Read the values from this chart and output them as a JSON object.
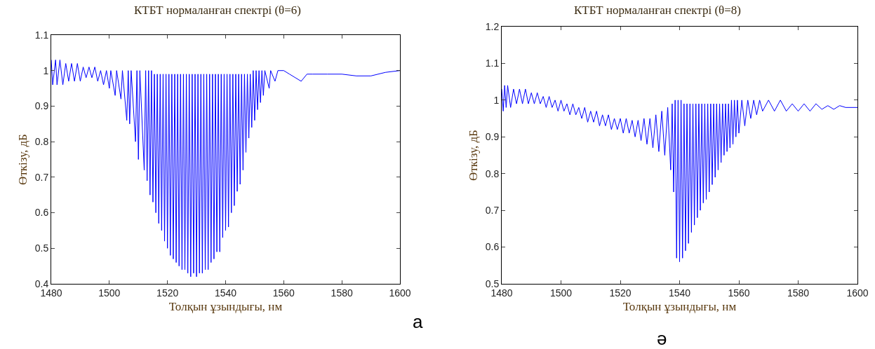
{
  "chart_data": [
    {
      "type": "line",
      "title": "КТБТ нормаланған спектрі (θ=6)",
      "xlabel": "Толқын ұзындығы, нм",
      "ylabel": "Өткізу, дБ",
      "xlim": [
        1480,
        1600
      ],
      "xticks": [
        1480,
        1500,
        1520,
        1540,
        1560,
        1580,
        1600
      ],
      "ylim": [
        0.4,
        1.1
      ],
      "yticks": [
        0.4,
        0.5,
        0.6,
        0.7,
        0.8,
        0.9,
        1,
        1.1
      ],
      "grid": false,
      "marker": "none",
      "line_style": "solid",
      "annotations": [
        "а"
      ],
      "series": [
        {
          "color": "#0000ff",
          "x": [
            1480,
            1480.5,
            1481.5,
            1482,
            1483,
            1484,
            1485,
            1486,
            1487,
            1488,
            1489,
            1490,
            1491,
            1492,
            1493,
            1494,
            1495,
            1496,
            1497,
            1498,
            1499,
            1500,
            1500.5,
            1502,
            1502.5,
            1504,
            1504.5,
            1506,
            1506.5,
            1507,
            1507.5,
            1509,
            1509.5,
            1510,
            1510.5,
            1512,
            1512.5,
            1513,
            1513.5,
            1514,
            1514.5,
            1515,
            1515.5,
            1516,
            1516.5,
            1517,
            1517.5,
            1518,
            1518.5,
            1519,
            1519.5,
            1520,
            1520.5,
            1521,
            1521.5,
            1522,
            1522.5,
            1523,
            1523.5,
            1524,
            1524.5,
            1525,
            1525.5,
            1526,
            1526.5,
            1527,
            1527.5,
            1528,
            1528.5,
            1529,
            1529.5,
            1530,
            1530.5,
            1531,
            1531.5,
            1532,
            1532.5,
            1533,
            1533.5,
            1534,
            1534.5,
            1535,
            1535.5,
            1536,
            1536.5,
            1537,
            1537.5,
            1538,
            1538.5,
            1539,
            1539.5,
            1540,
            1540.5,
            1541,
            1541.5,
            1542,
            1542.5,
            1543,
            1543.5,
            1544,
            1544.5,
            1545,
            1545.5,
            1546,
            1546.5,
            1547,
            1547.5,
            1548,
            1548.5,
            1549,
            1549.5,
            1550,
            1550.5,
            1551,
            1551.5,
            1552,
            1552.5,
            1553,
            1553.5,
            1555,
            1555.5,
            1557,
            1558,
            1560,
            1562,
            1564,
            1566,
            1568,
            1570,
            1575,
            1580,
            1585,
            1590,
            1595,
            1600
          ],
          "values": [
            1.03,
            0.96,
            1.03,
            0.96,
            1.03,
            0.96,
            1.02,
            0.97,
            1.02,
            0.97,
            1.02,
            0.97,
            1.01,
            0.98,
            1.01,
            0.98,
            1.01,
            0.97,
            1.0,
            0.96,
            1.0,
            0.95,
            1.0,
            0.93,
            1.0,
            0.92,
            1.0,
            0.86,
            1.0,
            0.85,
            1.0,
            0.8,
            1.0,
            0.75,
            1.0,
            0.72,
            1.0,
            0.69,
            1.0,
            0.65,
            1.0,
            0.63,
            0.99,
            0.6,
            0.99,
            0.57,
            0.99,
            0.55,
            0.99,
            0.52,
            0.99,
            0.5,
            0.99,
            0.48,
            0.99,
            0.47,
            0.99,
            0.46,
            0.99,
            0.45,
            0.99,
            0.44,
            0.99,
            0.44,
            0.99,
            0.43,
            0.99,
            0.42,
            0.99,
            0.43,
            0.99,
            0.42,
            0.99,
            0.43,
            0.99,
            0.43,
            0.99,
            0.44,
            0.99,
            0.44,
            0.99,
            0.46,
            0.99,
            0.47,
            0.99,
            0.49,
            0.99,
            0.49,
            0.99,
            0.53,
            0.99,
            0.55,
            0.99,
            0.56,
            0.99,
            0.6,
            0.99,
            0.62,
            0.99,
            0.66,
            0.99,
            0.68,
            0.99,
            0.72,
            0.99,
            0.77,
            0.99,
            0.81,
            0.99,
            0.84,
            1.0,
            0.86,
            1.0,
            0.89,
            1.0,
            0.91,
            1.0,
            0.93,
            1.0,
            0.95,
            1.0,
            0.97,
            1.0,
            1.0,
            0.99,
            0.98,
            0.97,
            0.99,
            0.99,
            0.99,
            0.99,
            0.985,
            0.985,
            0.995,
            1.0
          ]
        }
      ]
    },
    {
      "type": "line",
      "title": "КТБТ нормаланған спектрі (θ=8)",
      "xlabel": "Толқын ұзындығы, нм",
      "ylabel": "Өткізу, дБ",
      "xlim": [
        1480,
        1600
      ],
      "xticks": [
        1480,
        1500,
        1520,
        1540,
        1560,
        1580,
        1600
      ],
      "ylim": [
        0.5,
        1.2
      ],
      "yticks": [
        0.5,
        0.6,
        0.7,
        0.8,
        0.9,
        1,
        1.1,
        1.2
      ],
      "grid": false,
      "marker": "none",
      "line_style": "solid",
      "annotations": [
        "ә"
      ],
      "series": [
        {
          "color": "#0000ff",
          "x": [
            1480,
            1480.5,
            1481,
            1481.5,
            1482,
            1483,
            1484,
            1485,
            1486,
            1487,
            1488,
            1489,
            1490,
            1491,
            1492,
            1493,
            1494,
            1495,
            1496,
            1497,
            1498,
            1499,
            1500,
            1501,
            1502,
            1503,
            1504,
            1505,
            1506,
            1507,
            1508,
            1509,
            1510,
            1511,
            1512,
            1513,
            1514,
            1515,
            1516,
            1517,
            1518,
            1519,
            1520,
            1521,
            1522,
            1523,
            1524,
            1525,
            1526,
            1527,
            1528,
            1529,
            1530,
            1531,
            1532,
            1533,
            1534,
            1535,
            1536,
            1537,
            1537.5,
            1538,
            1538.5,
            1539,
            1539.5,
            1540,
            1540.5,
            1541,
            1541.5,
            1542,
            1542.5,
            1543,
            1543.5,
            1544,
            1544.5,
            1545,
            1545.5,
            1546,
            1546.5,
            1547,
            1547.5,
            1548,
            1548.5,
            1549,
            1549.5,
            1550,
            1550.5,
            1551,
            1551.5,
            1552,
            1552.5,
            1553,
            1553.5,
            1554,
            1554.5,
            1555,
            1555.5,
            1556,
            1556.5,
            1557,
            1557.5,
            1558,
            1558.5,
            1559,
            1559.5,
            1560,
            1561,
            1562,
            1563,
            1564,
            1565,
            1566,
            1567,
            1568,
            1570,
            1572,
            1574,
            1576,
            1578,
            1580,
            1582,
            1584,
            1586,
            1588,
            1590,
            1592,
            1594,
            1596,
            1600
          ],
          "values": [
            1.03,
            0.97,
            1.04,
            0.98,
            1.04,
            0.98,
            1.03,
            0.99,
            1.03,
            0.99,
            1.03,
            0.99,
            1.02,
            0.99,
            1.02,
            0.99,
            1.01,
            0.98,
            1.01,
            0.98,
            1.0,
            0.97,
            1.0,
            0.97,
            0.99,
            0.96,
            0.99,
            0.96,
            0.98,
            0.95,
            0.98,
            0.94,
            0.97,
            0.94,
            0.97,
            0.93,
            0.96,
            0.93,
            0.96,
            0.92,
            0.95,
            0.92,
            0.95,
            0.91,
            0.95,
            0.91,
            0.945,
            0.9,
            0.945,
            0.89,
            0.95,
            0.88,
            0.95,
            0.87,
            0.96,
            0.86,
            0.97,
            0.85,
            0.98,
            0.81,
            0.99,
            0.75,
            1.0,
            0.57,
            1.0,
            0.56,
            1.0,
            0.57,
            0.99,
            0.59,
            0.99,
            0.61,
            0.99,
            0.64,
            0.99,
            0.66,
            0.99,
            0.68,
            0.99,
            0.7,
            0.99,
            0.72,
            0.99,
            0.73,
            0.99,
            0.75,
            0.99,
            0.77,
            0.99,
            0.79,
            0.99,
            0.81,
            0.99,
            0.83,
            0.99,
            0.85,
            0.99,
            0.86,
            0.99,
            0.87,
            1.0,
            0.88,
            1.0,
            0.9,
            1.0,
            0.91,
            1.0,
            0.93,
            1.0,
            0.95,
            1.0,
            0.96,
            1.0,
            0.97,
            1.0,
            0.97,
            1.0,
            0.97,
            0.99,
            0.97,
            0.99,
            0.97,
            0.99,
            0.975,
            0.985,
            0.975,
            0.985,
            0.98,
            0.98
          ]
        }
      ]
    }
  ]
}
